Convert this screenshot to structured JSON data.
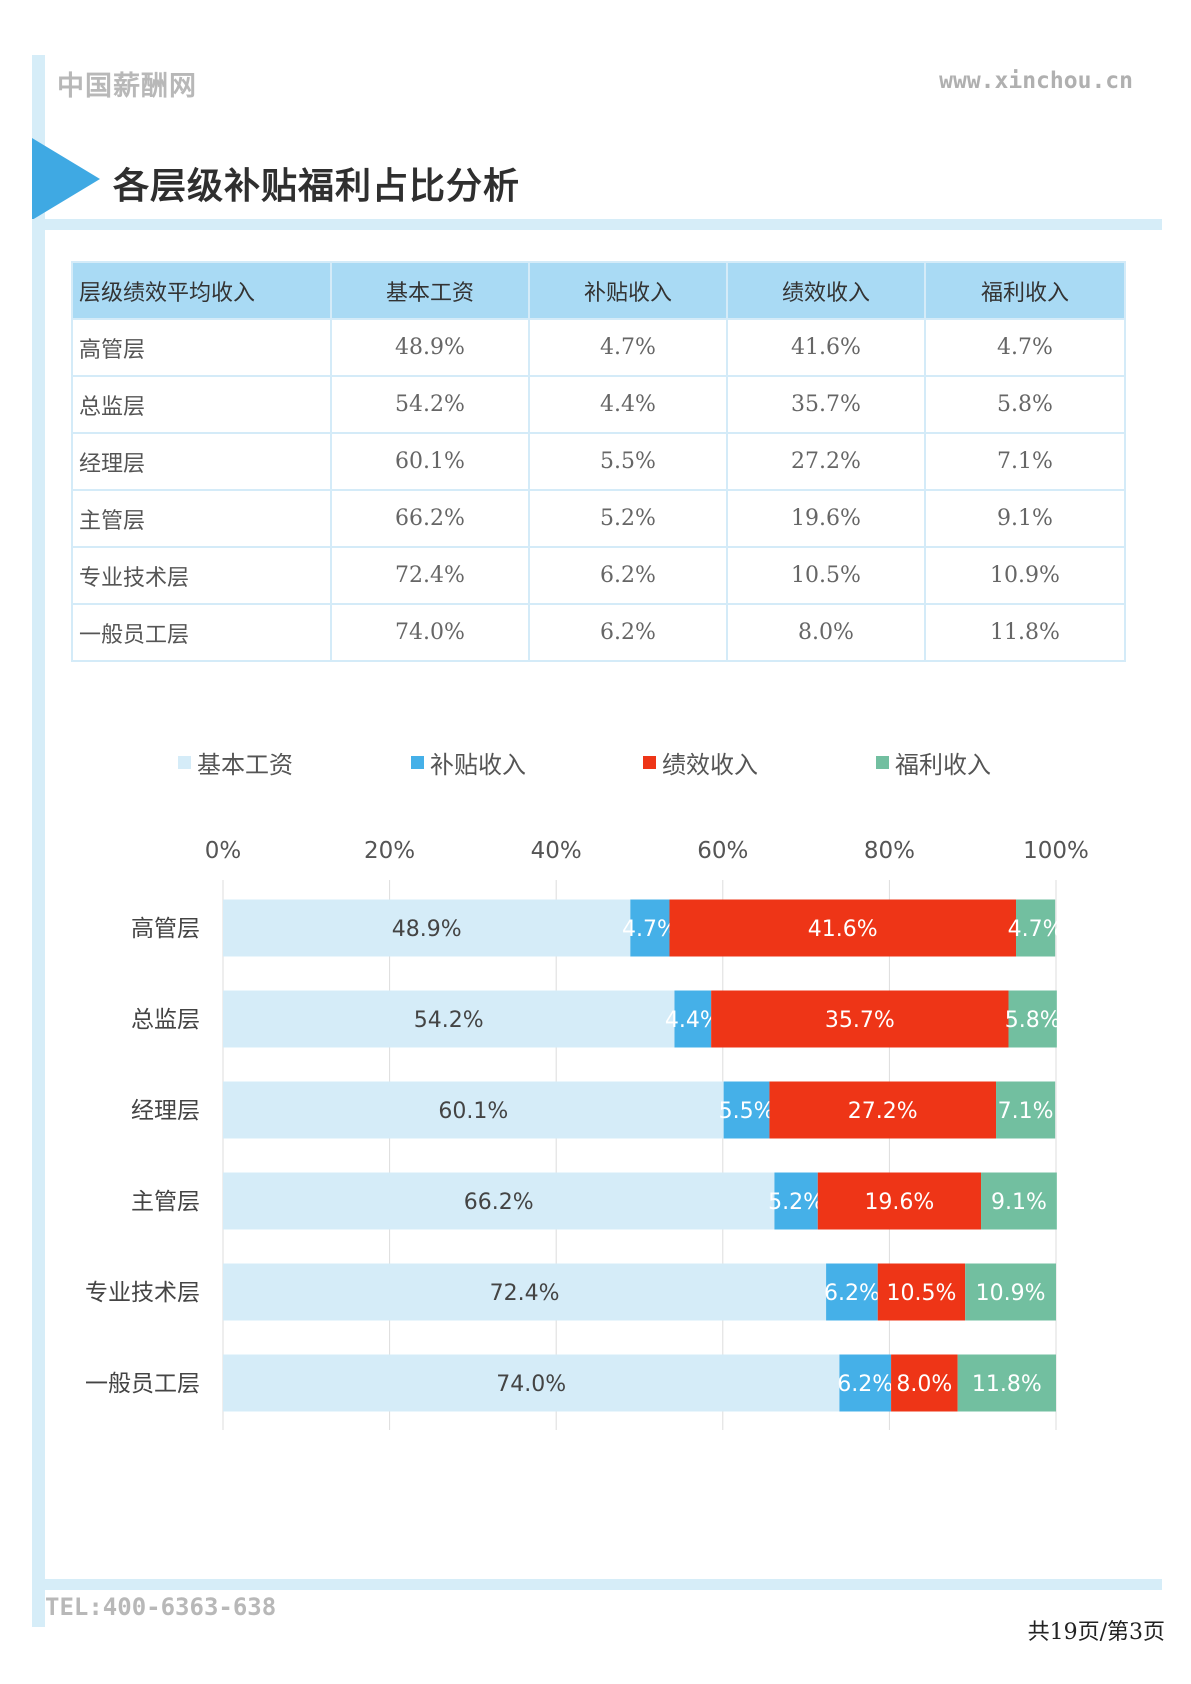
{
  "header": {
    "site_name": "中国薪酬网",
    "url": "www.xinchou.cn"
  },
  "page_title": "各层级补贴福利占比分析",
  "table": {
    "headers": [
      "层级绩效平均收入",
      "基本工资",
      "补贴收入",
      "绩效收入",
      "福利收入"
    ],
    "rows": [
      [
        "高管层",
        "48.9%",
        "4.7%",
        "41.6%",
        "4.7%"
      ],
      [
        "总监层",
        "54.2%",
        "4.4%",
        "35.7%",
        "5.8%"
      ],
      [
        "经理层",
        "60.1%",
        "5.5%",
        "27.2%",
        "7.1%"
      ],
      [
        "主管层",
        "66.2%",
        "5.2%",
        "19.6%",
        "9.1%"
      ],
      [
        "专业技术层",
        "72.4%",
        "6.2%",
        "10.5%",
        "10.9%"
      ],
      [
        "一般员工层",
        "74.0%",
        "6.2%",
        "8.0%",
        "11.8%"
      ]
    ]
  },
  "chart_data": {
    "type": "bar",
    "orientation": "horizontal",
    "stacked": true,
    "categories": [
      "高管层",
      "总监层",
      "经理层",
      "主管层",
      "专业技术层",
      "一般员工层"
    ],
    "series": [
      {
        "name": "基本工资",
        "color": "#d5ecf8",
        "label_color": "#444444",
        "values": [
          48.9,
          54.2,
          60.1,
          66.2,
          72.4,
          74.0
        ]
      },
      {
        "name": "补贴收入",
        "color": "#45b0e8",
        "label_color": "#ffffff",
        "values": [
          4.7,
          4.4,
          5.5,
          5.2,
          6.2,
          6.2
        ]
      },
      {
        "name": "绩效收入",
        "color": "#ee3517",
        "label_color": "#ffffff",
        "values": [
          41.6,
          35.7,
          27.2,
          19.6,
          10.5,
          8.0
        ]
      },
      {
        "name": "福利收入",
        "color": "#72bfa0",
        "label_color": "#ffffff",
        "values": [
          4.7,
          5.8,
          7.1,
          9.1,
          10.9,
          11.8
        ]
      }
    ],
    "xlim": [
      0,
      100
    ],
    "xticks": [
      "0%",
      "20%",
      "40%",
      "60%",
      "80%",
      "100%"
    ],
    "legend_position": "top",
    "grid": true
  },
  "footer": {
    "tel": "TEL:400-6363-638",
    "page_info": "共19页/第3页"
  }
}
